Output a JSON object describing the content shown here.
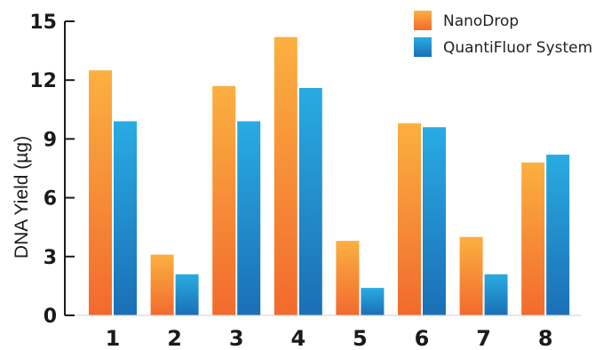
{
  "chart_data": {
    "type": "bar",
    "title": "",
    "xlabel": "",
    "ylabel": "DNA Yield (µg)",
    "ylim": [
      0,
      15
    ],
    "yticks": [
      0,
      3,
      6,
      9,
      12,
      15
    ],
    "grid": false,
    "legend_position": "top-right",
    "categories": [
      "1",
      "2",
      "3",
      "4",
      "5",
      "6",
      "7",
      "8"
    ],
    "series": [
      {
        "name": "NanoDrop",
        "values": [
          12.5,
          3.1,
          11.7,
          14.2,
          3.8,
          9.8,
          4.0,
          7.8
        ],
        "color_top": "#FBB040",
        "color_bottom": "#F26A2E"
      },
      {
        "name": "QuantiFluor System",
        "values": [
          9.9,
          2.1,
          9.9,
          11.6,
          1.4,
          9.6,
          2.1,
          8.2
        ],
        "color_top": "#29ABE2",
        "color_bottom": "#1B6FB5"
      }
    ]
  }
}
